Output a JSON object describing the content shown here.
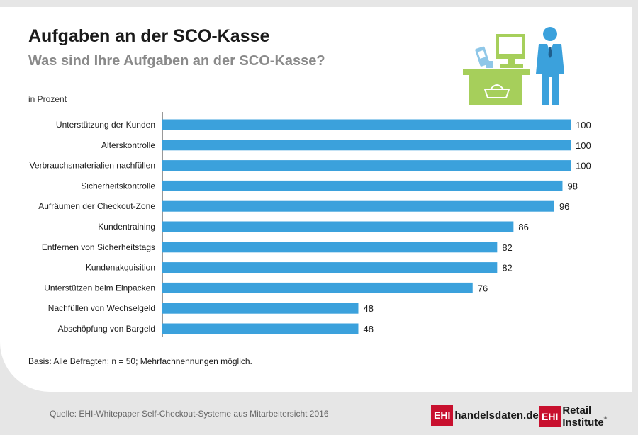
{
  "header": {
    "title": "Aufgaben an der SCO-Kasse",
    "subtitle": "Was sind Ihre Aufgaben an der SCO-Kasse?",
    "unit": "in Prozent"
  },
  "chart_data": {
    "type": "bar",
    "orientation": "horizontal",
    "title": "Aufgaben an der SCO-Kasse",
    "subtitle": "Was sind Ihre Aufgaben an der SCO-Kasse?",
    "xlabel": "in Prozent",
    "ylabel": "",
    "xlim": [
      0,
      100
    ],
    "grid": false,
    "legend": "none",
    "bar_color": "#3ba1dc",
    "data_labels": true,
    "categories": [
      "Unterstützung der Kunden",
      "Alterskontrolle",
      "Verbrauchsmaterialien nachfüllen",
      "Sicherheitskontrolle",
      "Aufräumen der Checkout-Zone",
      "Kundentraining",
      "Entfernen von Sicherheitstags",
      "Kundenakquisition",
      "Unterstützen beim Einpacken",
      "Nachfüllen von Wechselgeld",
      "Abschöpfung von Bargeld"
    ],
    "values": [
      100,
      100,
      100,
      98,
      96,
      86,
      82,
      82,
      76,
      48,
      48
    ]
  },
  "footer": {
    "basis": "Basis: Alle Befragten; n = 50; Mehrfachnennungen möglich.",
    "source": "Quelle: EHI-Whitepaper Self-Checkout-Systeme aus Mitarbeitersicht 2016"
  },
  "logos": [
    {
      "box": "EHI",
      "text": "handelsdaten.de",
      "icon": "ehi-logo-icon"
    },
    {
      "box": "EHI",
      "text": "Retail Institute",
      "mark": "®",
      "icon": "ehi-logo-icon"
    }
  ],
  "illustration": {
    "icon": "self-checkout-cashier-icon",
    "colors": {
      "terminal": "#a6cf5b",
      "person": "#3ba1dc",
      "item": "#8fc7e8"
    }
  }
}
